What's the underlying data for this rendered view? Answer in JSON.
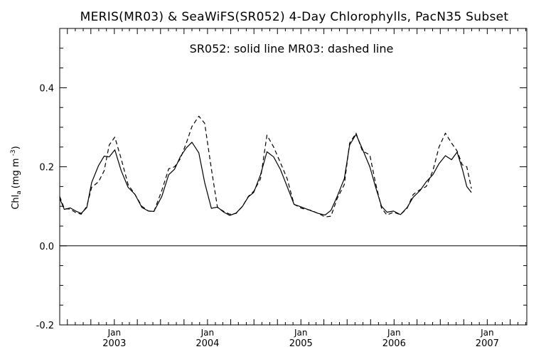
{
  "chart_data": {
    "type": "line",
    "title": "MERIS(MR03) & SeaWiFS(SR052) 4-Day Chlorophylls, PacN35 Subset",
    "annotation": "SR052: solid line    MR03: dashed line",
    "ylabel_main": "Chl",
    "ylabel_sub": "a",
    "ylabel_units": "(mg m",
    "ylabel_exp": "-3",
    "ylabel_close": ")",
    "ylim": [
      -0.2,
      0.55
    ],
    "xlim": [
      "2002-06-01",
      "2007-06-05"
    ],
    "yticks": [
      {
        "value": -0.2,
        "label": "-0.2"
      },
      {
        "value": 0.0,
        "label": "0.0"
      },
      {
        "value": 0.2,
        "label": "0.2"
      },
      {
        "value": 0.4,
        "label": "0.4"
      }
    ],
    "xticks": [
      {
        "date": "2003-01-01",
        "month": "Jan",
        "year": "2003"
      },
      {
        "date": "2004-01-01",
        "month": "Jan",
        "year": "2004"
      },
      {
        "date": "2005-01-01",
        "month": "Jan",
        "year": "2005"
      },
      {
        "date": "2006-01-01",
        "month": "Jan",
        "year": "2006"
      },
      {
        "date": "2007-01-01",
        "month": "Jan",
        "year": "2007"
      }
    ],
    "reference_line": 0.0,
    "series": [
      {
        "name": "SR052",
        "style": "solid",
        "color": "#000000",
        "points": [
          [
            "2002-06-01",
            0.12
          ],
          [
            "2002-06-19",
            0.092
          ],
          [
            "2002-07-12",
            0.096
          ],
          [
            "2002-08-03",
            0.088
          ],
          [
            "2002-08-24",
            0.082
          ],
          [
            "2002-09-15",
            0.097
          ],
          [
            "2002-10-04",
            0.16
          ],
          [
            "2002-10-31",
            0.203
          ],
          [
            "2002-11-22",
            0.227
          ],
          [
            "2002-12-12",
            0.225
          ],
          [
            "2003-01-03",
            0.243
          ],
          [
            "2003-01-28",
            0.19
          ],
          [
            "2003-02-24",
            0.148
          ],
          [
            "2003-03-23",
            0.13
          ],
          [
            "2003-04-19",
            0.097
          ],
          [
            "2003-05-15",
            0.088
          ],
          [
            "2003-06-05",
            0.087
          ],
          [
            "2003-07-06",
            0.125
          ],
          [
            "2003-08-02",
            0.18
          ],
          [
            "2003-08-25",
            0.194
          ],
          [
            "2003-09-16",
            0.225
          ],
          [
            "2003-10-10",
            0.248
          ],
          [
            "2003-11-01",
            0.262
          ],
          [
            "2003-11-28",
            0.235
          ],
          [
            "2003-12-21",
            0.16
          ],
          [
            "2004-01-16",
            0.095
          ],
          [
            "2004-02-09",
            0.098
          ],
          [
            "2004-03-05",
            0.085
          ],
          [
            "2004-03-28",
            0.077
          ],
          [
            "2004-04-22",
            0.083
          ],
          [
            "2004-05-17",
            0.1
          ],
          [
            "2004-06-09",
            0.124
          ],
          [
            "2004-06-30",
            0.135
          ],
          [
            "2004-07-27",
            0.18
          ],
          [
            "2004-08-21",
            0.238
          ],
          [
            "2004-09-16",
            0.225
          ],
          [
            "2004-10-13",
            0.193
          ],
          [
            "2004-11-08",
            0.15
          ],
          [
            "2004-12-05",
            0.105
          ],
          [
            "2005-01-04",
            0.098
          ],
          [
            "2005-02-09",
            0.089
          ],
          [
            "2005-03-10",
            0.082
          ],
          [
            "2005-04-06",
            0.078
          ],
          [
            "2005-04-29",
            0.09
          ],
          [
            "2005-05-23",
            0.125
          ],
          [
            "2005-06-20",
            0.17
          ],
          [
            "2005-07-11",
            0.255
          ],
          [
            "2005-08-05",
            0.282
          ],
          [
            "2005-08-30",
            0.245
          ],
          [
            "2005-09-28",
            0.2
          ],
          [
            "2005-10-20",
            0.15
          ],
          [
            "2005-11-13",
            0.1
          ],
          [
            "2005-12-04",
            0.085
          ],
          [
            "2005-12-30",
            0.088
          ],
          [
            "2006-01-26",
            0.079
          ],
          [
            "2006-02-21",
            0.097
          ],
          [
            "2006-03-17",
            0.123
          ],
          [
            "2006-04-13",
            0.14
          ],
          [
            "2006-05-07",
            0.162
          ],
          [
            "2006-06-02",
            0.18
          ],
          [
            "2006-06-26",
            0.208
          ],
          [
            "2006-07-21",
            0.228
          ],
          [
            "2006-08-14",
            0.218
          ],
          [
            "2006-09-05",
            0.237
          ],
          [
            "2006-09-25",
            0.195
          ],
          [
            "2006-10-13",
            0.15
          ],
          [
            "2006-10-31",
            0.135
          ]
        ]
      },
      {
        "name": "MR03",
        "style": "dashed",
        "color": "#000000",
        "points": [
          [
            "2002-06-01",
            0.125
          ],
          [
            "2002-06-19",
            0.094
          ],
          [
            "2002-07-12",
            0.093
          ],
          [
            "2002-08-03",
            0.084
          ],
          [
            "2002-08-24",
            0.08
          ],
          [
            "2002-09-15",
            0.1
          ],
          [
            "2002-10-04",
            0.148
          ],
          [
            "2002-10-31",
            0.162
          ],
          [
            "2002-11-22",
            0.19
          ],
          [
            "2002-12-12",
            0.255
          ],
          [
            "2003-01-03",
            0.275
          ],
          [
            "2003-01-28",
            0.22
          ],
          [
            "2003-02-24",
            0.155
          ],
          [
            "2003-03-23",
            0.13
          ],
          [
            "2003-04-19",
            0.1
          ],
          [
            "2003-05-15",
            0.088
          ],
          [
            "2003-06-05",
            0.087
          ],
          [
            "2003-07-06",
            0.14
          ],
          [
            "2003-08-02",
            0.195
          ],
          [
            "2003-08-25",
            0.2
          ],
          [
            "2003-09-16",
            0.22
          ],
          [
            "2003-10-10",
            0.26
          ],
          [
            "2003-11-01",
            0.302
          ],
          [
            "2003-11-28",
            0.328
          ],
          [
            "2003-12-21",
            0.31
          ],
          [
            "2004-01-16",
            0.195
          ],
          [
            "2004-02-09",
            0.097
          ],
          [
            "2004-03-05",
            0.087
          ],
          [
            "2004-03-28",
            0.08
          ],
          [
            "2004-04-22",
            0.082
          ],
          [
            "2004-05-17",
            0.1
          ],
          [
            "2004-06-09",
            0.125
          ],
          [
            "2004-06-30",
            0.138
          ],
          [
            "2004-07-27",
            0.17
          ],
          [
            "2004-08-21",
            0.28
          ],
          [
            "2004-09-16",
            0.25
          ],
          [
            "2004-10-13",
            0.21
          ],
          [
            "2004-11-08",
            0.17
          ],
          [
            "2004-12-05",
            0.105
          ],
          [
            "2005-01-04",
            0.095
          ],
          [
            "2005-02-09",
            0.09
          ],
          [
            "2005-03-10",
            0.082
          ],
          [
            "2005-04-06",
            0.073
          ],
          [
            "2005-04-29",
            0.075
          ],
          [
            "2005-05-23",
            0.12
          ],
          [
            "2005-06-20",
            0.155
          ],
          [
            "2005-07-11",
            0.26
          ],
          [
            "2005-08-05",
            0.285
          ],
          [
            "2005-08-30",
            0.24
          ],
          [
            "2005-09-28",
            0.23
          ],
          [
            "2005-10-20",
            0.16
          ],
          [
            "2005-11-13",
            0.095
          ],
          [
            "2005-12-04",
            0.078
          ],
          [
            "2005-12-30",
            0.085
          ],
          [
            "2006-01-26",
            0.079
          ],
          [
            "2006-02-21",
            0.095
          ],
          [
            "2006-03-17",
            0.13
          ],
          [
            "2006-04-13",
            0.142
          ],
          [
            "2006-05-07",
            0.15
          ],
          [
            "2006-06-02",
            0.19
          ],
          [
            "2006-06-26",
            0.25
          ],
          [
            "2006-07-21",
            0.285
          ],
          [
            "2006-08-14",
            0.26
          ],
          [
            "2006-09-05",
            0.24
          ],
          [
            "2006-09-25",
            0.205
          ],
          [
            "2006-10-13",
            0.2
          ],
          [
            "2006-10-31",
            0.145
          ]
        ]
      }
    ],
    "grid": false,
    "legend": "none"
  }
}
